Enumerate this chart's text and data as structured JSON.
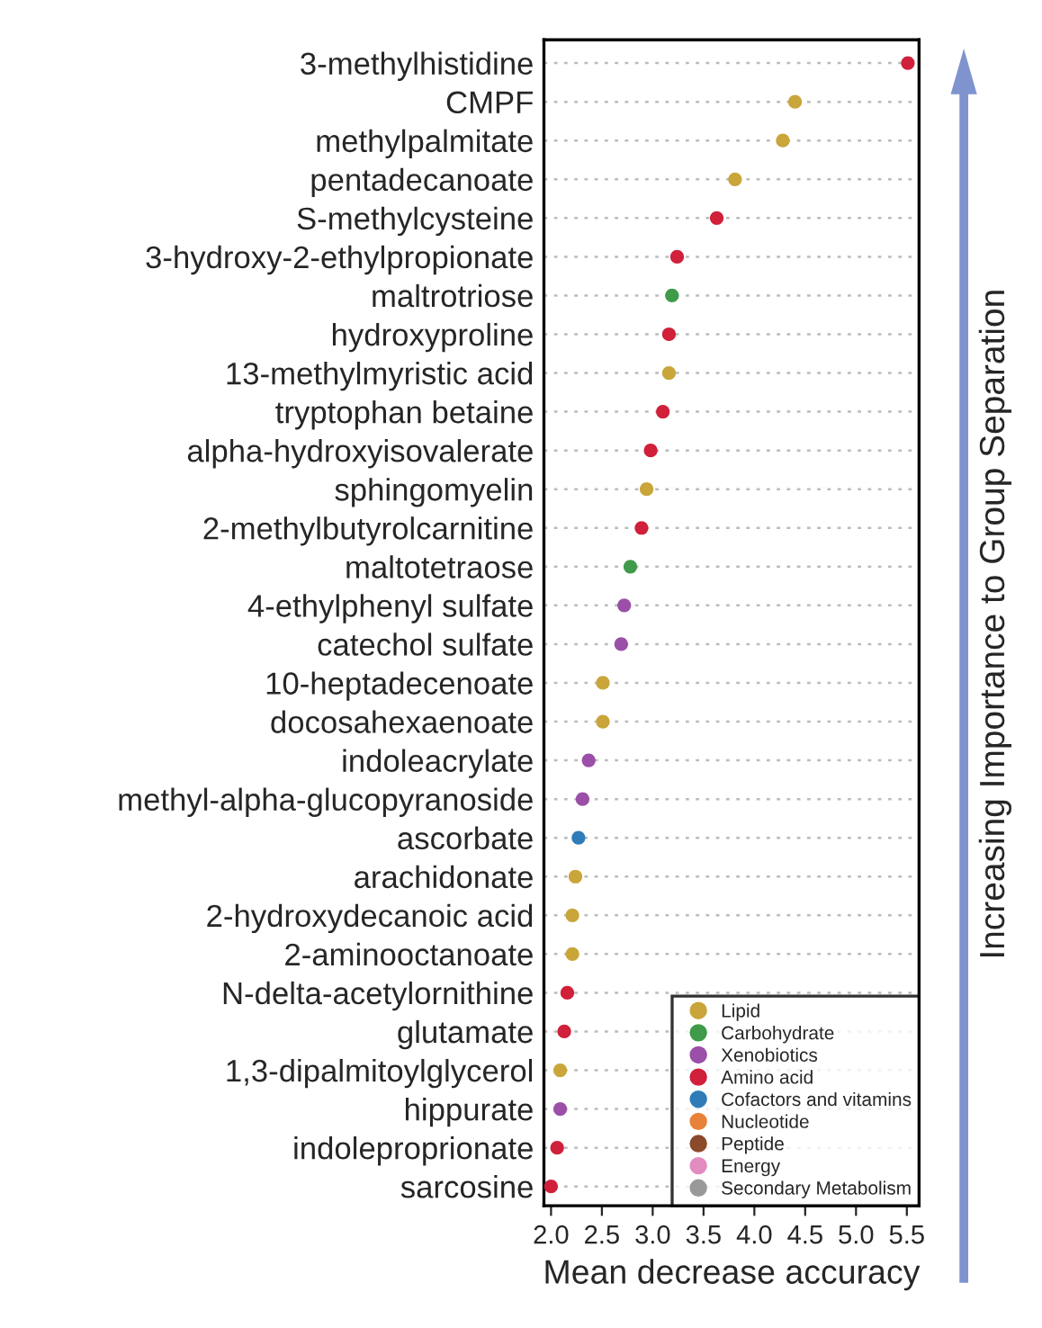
{
  "chart_data": {
    "type": "scatter",
    "orientation": "horizontal",
    "xlabel": "Mean decrease accuracy",
    "categories": [
      "3-methylhistidine",
      "CMPF",
      "methylpalmitate",
      "pentadecanoate",
      "S-methylcysteine",
      "3-hydroxy-2-ethylpropionate",
      "maltrotriose",
      "hydroxyproline",
      "13-methylmyristic acid",
      "tryptophan betaine",
      "alpha-hydroxyisovalerate",
      "sphingomyelin",
      "2-methylbutyrolcarnitine",
      "maltotetraose",
      "4-ethylphenyl sulfate",
      "catechol sulfate",
      "10-heptadecenoate",
      "docosahexaenoate",
      "indoleacrylate",
      "methyl-alpha-glucopyranoside",
      "ascorbate",
      "arachidonate",
      "2-hydroxydecanoic acid",
      "2-aminooctanoate",
      "N-delta-acetylornithine",
      "glutamate",
      "1,3-dipalmitoylglycerol",
      "hippurate",
      "indoleproprionate",
      "sarcosine"
    ],
    "series": [
      {
        "name": "Lipid",
        "color": "#c9a53a",
        "values": [
          null,
          4.4,
          4.28,
          3.81,
          null,
          null,
          null,
          null,
          3.16,
          null,
          null,
          2.94,
          null,
          null,
          null,
          null,
          2.51,
          2.51,
          null,
          null,
          null,
          2.24,
          2.21,
          2.21,
          null,
          null,
          2.09,
          null,
          null,
          null
        ]
      },
      {
        "name": "Carbohydrate",
        "color": "#3f9a4a",
        "values": [
          null,
          null,
          null,
          null,
          null,
          null,
          3.19,
          null,
          null,
          null,
          null,
          null,
          null,
          2.78,
          null,
          null,
          null,
          null,
          null,
          null,
          null,
          null,
          null,
          null,
          null,
          null,
          null,
          null,
          null,
          null
        ]
      },
      {
        "name": "Xenobiotics",
        "color": "#9b4fa8",
        "values": [
          null,
          null,
          null,
          null,
          null,
          null,
          null,
          null,
          null,
          null,
          null,
          null,
          null,
          null,
          2.72,
          2.69,
          null,
          null,
          2.37,
          2.31,
          null,
          null,
          null,
          null,
          null,
          null,
          null,
          2.09,
          null,
          null
        ]
      },
      {
        "name": "Amino acid",
        "color": "#d0203a",
        "values": [
          5.51,
          null,
          null,
          null,
          3.63,
          3.24,
          null,
          3.16,
          null,
          3.1,
          2.98,
          null,
          2.89,
          null,
          null,
          null,
          null,
          null,
          null,
          null,
          null,
          null,
          null,
          null,
          2.16,
          2.13,
          null,
          null,
          2.06,
          2.0
        ]
      },
      {
        "name": "Cofactors and vitamins",
        "color": "#2f7cb8",
        "values": [
          null,
          null,
          null,
          null,
          null,
          null,
          null,
          null,
          null,
          null,
          null,
          null,
          null,
          null,
          null,
          null,
          null,
          null,
          null,
          null,
          2.27,
          null,
          null,
          null,
          null,
          null,
          null,
          null,
          null,
          null
        ]
      },
      {
        "name": "Nucleotide",
        "color": "#e8823a",
        "values": [
          null,
          null,
          null,
          null,
          null,
          null,
          null,
          null,
          null,
          null,
          null,
          null,
          null,
          null,
          null,
          null,
          null,
          null,
          null,
          null,
          null,
          null,
          null,
          null,
          null,
          null,
          null,
          null,
          null,
          null
        ]
      },
      {
        "name": "Peptide",
        "color": "#8b4a2b",
        "values": [
          null,
          null,
          null,
          null,
          null,
          null,
          null,
          null,
          null,
          null,
          null,
          null,
          null,
          null,
          null,
          null,
          null,
          null,
          null,
          null,
          null,
          null,
          null,
          null,
          null,
          null,
          null,
          null,
          null,
          null
        ]
      },
      {
        "name": "Energy",
        "color": "#e28cc0",
        "values": [
          null,
          null,
          null,
          null,
          null,
          null,
          null,
          null,
          null,
          null,
          null,
          null,
          null,
          null,
          null,
          null,
          null,
          null,
          null,
          null,
          null,
          null,
          null,
          null,
          null,
          null,
          null,
          null,
          null,
          null
        ]
      },
      {
        "name": "Secondary Metabolism",
        "color": "#999999",
        "values": [
          null,
          null,
          null,
          null,
          null,
          null,
          null,
          null,
          null,
          null,
          null,
          null,
          null,
          null,
          null,
          null,
          null,
          null,
          null,
          null,
          null,
          null,
          null,
          null,
          null,
          null,
          null,
          null,
          null,
          null
        ]
      }
    ],
    "xlim": [
      1.93,
      5.62
    ],
    "xticks": [
      {
        "value": 2,
        "label": "2.0"
      },
      {
        "value": 2.5,
        "label": "2.5"
      },
      {
        "value": 3,
        "label": "3.0"
      },
      {
        "value": 3.5,
        "label": "3.5"
      },
      {
        "value": 4,
        "label": "4.0"
      },
      {
        "value": 4.5,
        "label": "4.5"
      },
      {
        "value": 5,
        "label": "5.0"
      },
      {
        "value": 5.5,
        "label": "5.5"
      }
    ],
    "grid": "y",
    "legend": "bottom right",
    "marker": "circle",
    "annotations": [
      "Increasing Importance to Group Separation"
    ]
  }
}
